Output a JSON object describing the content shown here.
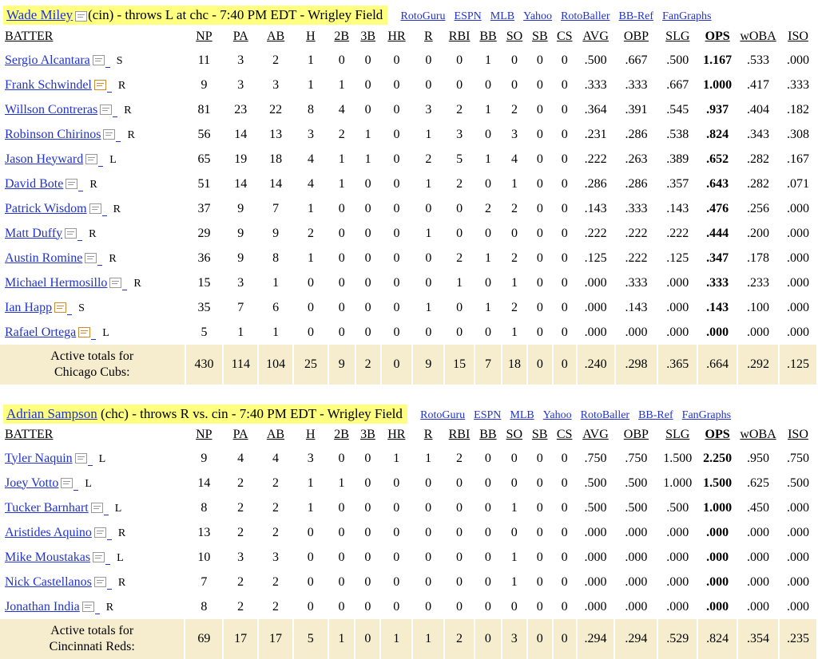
{
  "columns": [
    "BATTER",
    "NP",
    "PA",
    "AB",
    "H",
    "2B",
    "3B",
    "HR",
    "R",
    "RBI",
    "BB",
    "SO",
    "SB",
    "CS",
    "AVG",
    "OBP",
    "SLG",
    "OPS",
    "wOBA",
    "ISO"
  ],
  "links": [
    "RotoGuru",
    "ESPN",
    "MLB",
    "Yahoo",
    "RotoBaller",
    "BB-Ref",
    "FanGraphs"
  ],
  "sections": [
    {
      "pitcher": "Wade Miley",
      "desc": "(cin) - throws L at chc - 7:40 PM EDT - Wrigley Field",
      "rows": [
        {
          "name": "Sergio Alcantara",
          "hand": "S",
          "flag": false,
          "stats": [
            "11",
            "3",
            "2",
            "1",
            "0",
            "0",
            "0",
            "0",
            "0",
            "1",
            "0",
            "0",
            "0",
            ".500",
            ".667",
            ".500",
            "1.167",
            ".533",
            ".000"
          ]
        },
        {
          "name": "Frank Schwindel",
          "hand": "R",
          "flag": true,
          "stats": [
            "9",
            "3",
            "3",
            "1",
            "1",
            "0",
            "0",
            "0",
            "0",
            "0",
            "0",
            "0",
            "0",
            ".333",
            ".333",
            ".667",
            "1.000",
            ".417",
            ".333"
          ]
        },
        {
          "name": "Willson Contreras",
          "hand": "R",
          "flag": false,
          "stats": [
            "81",
            "23",
            "22",
            "8",
            "4",
            "0",
            "0",
            "3",
            "2",
            "1",
            "2",
            "0",
            "0",
            ".364",
            ".391",
            ".545",
            ".937",
            ".404",
            ".182"
          ]
        },
        {
          "name": "Robinson Chirinos",
          "hand": "R",
          "flag": false,
          "stats": [
            "56",
            "14",
            "13",
            "3",
            "2",
            "1",
            "0",
            "1",
            "3",
            "0",
            "3",
            "0",
            "0",
            ".231",
            ".286",
            ".538",
            ".824",
            ".343",
            ".308"
          ]
        },
        {
          "name": "Jason Heyward",
          "hand": "L",
          "flag": false,
          "stats": [
            "65",
            "19",
            "18",
            "4",
            "1",
            "1",
            "0",
            "2",
            "5",
            "1",
            "4",
            "0",
            "0",
            ".222",
            ".263",
            ".389",
            ".652",
            ".282",
            ".167"
          ]
        },
        {
          "name": "David Bote",
          "hand": "R",
          "flag": false,
          "stats": [
            "51",
            "14",
            "14",
            "4",
            "1",
            "0",
            "0",
            "1",
            "2",
            "0",
            "1",
            "0",
            "0",
            ".286",
            ".286",
            ".357",
            ".643",
            ".282",
            ".071"
          ]
        },
        {
          "name": "Patrick Wisdom",
          "hand": "R",
          "flag": false,
          "stats": [
            "37",
            "9",
            "7",
            "1",
            "0",
            "0",
            "0",
            "0",
            "0",
            "2",
            "2",
            "0",
            "0",
            ".143",
            ".333",
            ".143",
            ".476",
            ".256",
            ".000"
          ]
        },
        {
          "name": "Matt Duffy",
          "hand": "R",
          "flag": false,
          "stats": [
            "29",
            "9",
            "9",
            "2",
            "0",
            "0",
            "0",
            "1",
            "0",
            "0",
            "0",
            "0",
            "0",
            ".222",
            ".222",
            ".222",
            ".444",
            ".200",
            ".000"
          ]
        },
        {
          "name": "Austin Romine",
          "hand": "R",
          "flag": false,
          "stats": [
            "36",
            "9",
            "8",
            "1",
            "0",
            "0",
            "0",
            "0",
            "2",
            "1",
            "2",
            "0",
            "0",
            ".125",
            ".222",
            ".125",
            ".347",
            ".178",
            ".000"
          ]
        },
        {
          "name": "Michael Hermosillo",
          "hand": "R",
          "flag": false,
          "stats": [
            "15",
            "3",
            "1",
            "0",
            "0",
            "0",
            "0",
            "0",
            "1",
            "0",
            "1",
            "0",
            "0",
            ".000",
            ".333",
            ".000",
            ".333",
            ".233",
            ".000"
          ]
        },
        {
          "name": "Ian Happ",
          "hand": "S",
          "flag": true,
          "stats": [
            "35",
            "7",
            "6",
            "0",
            "0",
            "0",
            "0",
            "1",
            "0",
            "1",
            "2",
            "0",
            "0",
            ".000",
            ".143",
            ".000",
            ".143",
            ".100",
            ".000"
          ]
        },
        {
          "name": "Rafael Ortega",
          "hand": "L",
          "flag": true,
          "stats": [
            "5",
            "1",
            "1",
            "0",
            "0",
            "0",
            "0",
            "0",
            "0",
            "0",
            "1",
            "0",
            "0",
            ".000",
            ".000",
            ".000",
            ".000",
            ".000",
            ".000"
          ]
        }
      ],
      "total_label_1": "Active totals for",
      "total_label_2": "Chicago Cubs:",
      "totals": [
        "430",
        "114",
        "104",
        "25",
        "9",
        "2",
        "0",
        "9",
        "15",
        "7",
        "18",
        "0",
        "0",
        ".240",
        ".298",
        ".365",
        ".664",
        ".292",
        ".125"
      ]
    },
    {
      "pitcher": "Adrian Sampson",
      "desc": " (chc) - throws R vs. cin - 7:40 PM EDT - Wrigley Field",
      "rows": [
        {
          "name": "Tyler Naquin",
          "hand": "L",
          "flag": false,
          "stats": [
            "9",
            "4",
            "4",
            "3",
            "0",
            "0",
            "1",
            "1",
            "2",
            "0",
            "0",
            "0",
            "0",
            ".750",
            ".750",
            "1.500",
            "2.250",
            ".950",
            ".750"
          ]
        },
        {
          "name": "Joey Votto",
          "hand": "L",
          "flag": false,
          "stats": [
            "14",
            "2",
            "2",
            "1",
            "1",
            "0",
            "0",
            "0",
            "0",
            "0",
            "0",
            "0",
            "0",
            ".500",
            ".500",
            "1.000",
            "1.500",
            ".625",
            ".500"
          ]
        },
        {
          "name": "Tucker Barnhart",
          "hand": "L",
          "flag": false,
          "stats": [
            "8",
            "2",
            "2",
            "1",
            "0",
            "0",
            "0",
            "0",
            "0",
            "0",
            "1",
            "0",
            "0",
            ".500",
            ".500",
            ".500",
            "1.000",
            ".450",
            ".000"
          ]
        },
        {
          "name": "Aristides Aquino",
          "hand": "R",
          "flag": false,
          "stats": [
            "13",
            "2",
            "2",
            "0",
            "0",
            "0",
            "0",
            "0",
            "0",
            "0",
            "0",
            "0",
            "0",
            ".000",
            ".000",
            ".000",
            ".000",
            ".000",
            ".000"
          ]
        },
        {
          "name": "Mike Moustakas",
          "hand": "L",
          "flag": false,
          "stats": [
            "10",
            "3",
            "3",
            "0",
            "0",
            "0",
            "0",
            "0",
            "0",
            "0",
            "1",
            "0",
            "0",
            ".000",
            ".000",
            ".000",
            ".000",
            ".000",
            ".000"
          ]
        },
        {
          "name": "Nick Castellanos",
          "hand": "R",
          "flag": false,
          "stats": [
            "7",
            "2",
            "2",
            "0",
            "0",
            "0",
            "0",
            "0",
            "0",
            "0",
            "1",
            "0",
            "0",
            ".000",
            ".000",
            ".000",
            ".000",
            ".000",
            ".000"
          ]
        },
        {
          "name": "Jonathan India",
          "hand": "R",
          "flag": false,
          "stats": [
            "8",
            "2",
            "2",
            "0",
            "0",
            "0",
            "0",
            "0",
            "0",
            "0",
            "0",
            "0",
            "0",
            ".000",
            ".000",
            ".000",
            ".000",
            ".000",
            ".000"
          ]
        }
      ],
      "total_label_1": "Active totals for",
      "total_label_2": "Cincinnati Reds:",
      "totals": [
        "69",
        "17",
        "17",
        "5",
        "1",
        "0",
        "1",
        "1",
        "2",
        "0",
        "3",
        "0",
        "0",
        ".294",
        ".294",
        ".529",
        ".824",
        ".354",
        ".235"
      ]
    }
  ]
}
